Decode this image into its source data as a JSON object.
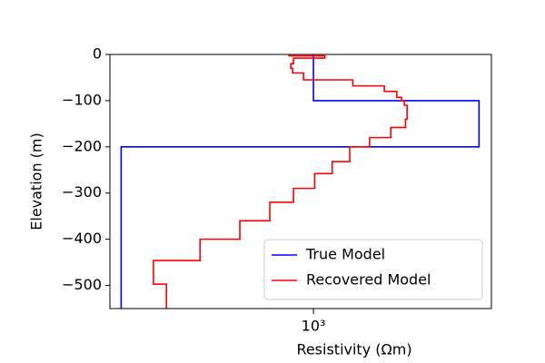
{
  "chart_data": {
    "type": "step-line",
    "xlabel": "Resistivity (Ωm)",
    "ylabel": "Elevation (m)",
    "xscale": "log",
    "xlim": [
      182,
      4436
    ],
    "ylim": [
      -550,
      0
    ],
    "xticks": [
      {
        "value": 1000,
        "label": "10³"
      }
    ],
    "yticks": [
      {
        "value": 0,
        "label": "0"
      },
      {
        "value": -100,
        "label": "−100"
      },
      {
        "value": -200,
        "label": "−200"
      },
      {
        "value": -300,
        "label": "−300"
      },
      {
        "value": -400,
        "label": "−400"
      },
      {
        "value": -500,
        "label": "−500"
      }
    ],
    "legend": "lower right",
    "series": [
      {
        "name": "True Model",
        "color": "#0000ff",
        "x": [
          1000,
          1000,
          4000,
          4000,
          200,
          200
        ],
        "values": [
          0,
          -100,
          -100,
          -200,
          -200,
          -550
        ]
      },
      {
        "name": "Recovered Model",
        "color": "#ff0000",
        "x": [
          815,
          815,
          1100,
          1100,
          846,
          846,
          827,
          827,
          840,
          840,
          920,
          920,
          1390,
          1390,
          1810,
          1810,
          2010,
          2010,
          2090,
          2090,
          2140,
          2140,
          2190,
          2190,
          2160,
          2160,
          1910,
          1910,
          1600,
          1600,
          1355,
          1355,
          1170,
          1170,
          1010,
          1010,
          846,
          846,
          694,
          694,
          540,
          540,
          387,
          387,
          262,
          262,
          292,
          292
        ],
        "values": [
          0,
          -3,
          -3,
          -8,
          -8,
          -20,
          -20,
          -30,
          -30,
          -40,
          -40,
          -55,
          -55,
          -68,
          -68,
          -80,
          -80,
          -93,
          -93,
          -100,
          -100,
          -110,
          -110,
          -140,
          -140,
          -158,
          -158,
          -180,
          -180,
          -200,
          -200,
          -232,
          -232,
          -258,
          -258,
          -290,
          -290,
          -320,
          -320,
          -360,
          -360,
          -400,
          -400,
          -446,
          -446,
          -497,
          -497,
          -550
        ]
      }
    ]
  }
}
